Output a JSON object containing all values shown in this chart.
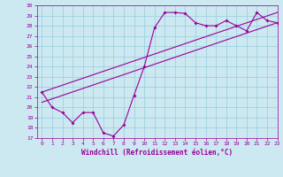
{
  "title": "",
  "xlabel": "Windchill (Refroidissement éolien,°C)",
  "ylabel": "",
  "bg_color": "#cce8f0",
  "line_color": "#990099",
  "grid_color": "#99ccdd",
  "x_data": [
    0,
    1,
    2,
    3,
    4,
    5,
    6,
    7,
    8,
    9,
    10,
    11,
    12,
    13,
    14,
    15,
    16,
    17,
    18,
    19,
    20,
    21,
    22,
    23
  ],
  "y_data": [
    21.5,
    20.0,
    19.5,
    18.5,
    19.5,
    19.5,
    17.5,
    17.2,
    18.3,
    21.2,
    24.0,
    27.8,
    29.3,
    29.3,
    29.2,
    28.3,
    28.0,
    28.0,
    28.5,
    28.0,
    27.5,
    29.3,
    28.5,
    28.3
  ],
  "line1_x": [
    0,
    23
  ],
  "line1_y": [
    20.5,
    28.3
  ],
  "line2_x": [
    0,
    23
  ],
  "line2_y": [
    21.5,
    29.3
  ],
  "ylim": [
    17,
    30
  ],
  "xlim": [
    -0.5,
    23
  ],
  "yticks": [
    17,
    18,
    19,
    20,
    21,
    22,
    23,
    24,
    25,
    26,
    27,
    28,
    29,
    30
  ],
  "xticks": [
    0,
    1,
    2,
    3,
    4,
    5,
    6,
    7,
    8,
    9,
    10,
    11,
    12,
    13,
    14,
    15,
    16,
    17,
    18,
    19,
    20,
    21,
    22,
    23
  ]
}
